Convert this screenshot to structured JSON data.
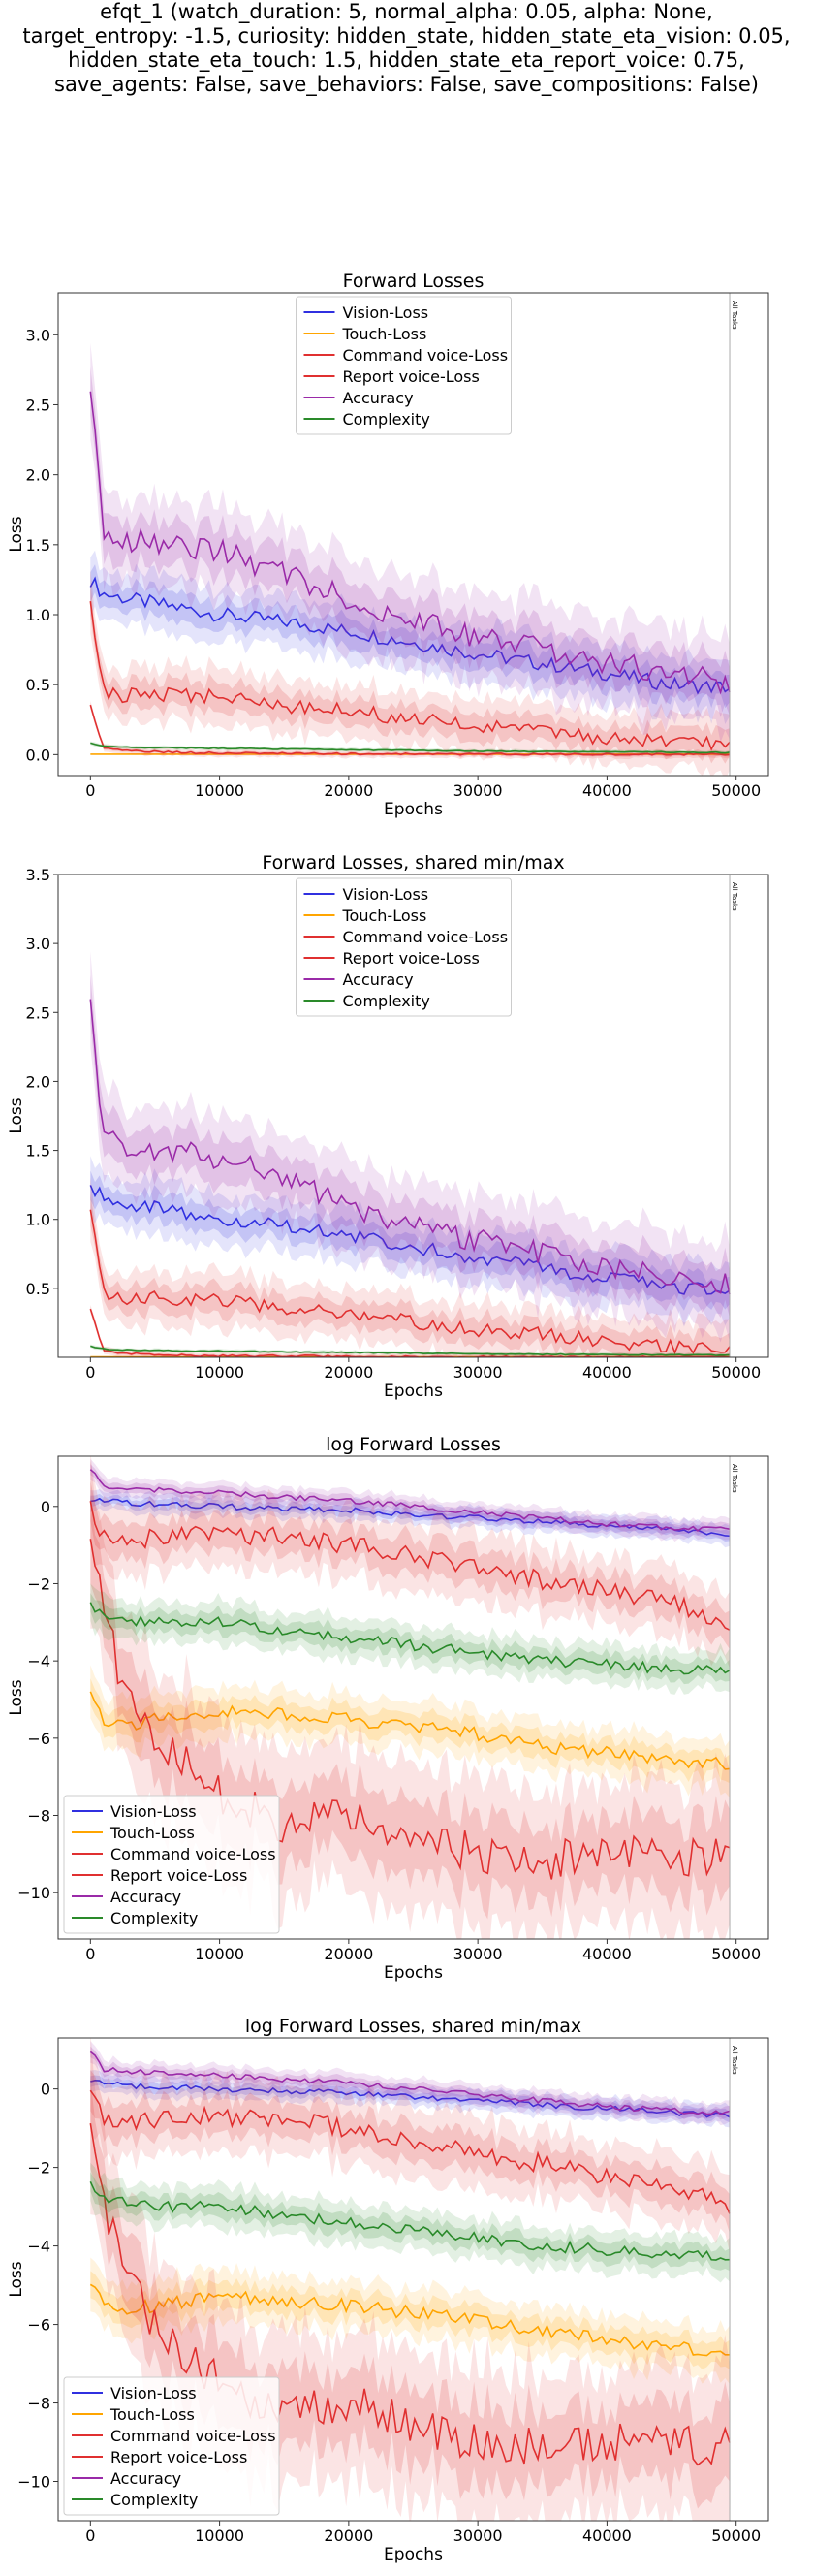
{
  "suptitle": {
    "lines": [
      "efqt_1 (watch_duration: 5, normal_alpha: 0.05, alpha: None,",
      "target_entropy: -1.5, curiosity: hidden_state, hidden_state_eta_vision: 0.05,",
      "hidden_state_eta_touch: 1.5, hidden_state_eta_report_voice: 0.75,",
      "save_agents: False, save_behaviors: False, save_compositions: False)"
    ]
  },
  "colors": {
    "Vision-Loss": "#3030e0",
    "Touch-Loss": "#ffa500",
    "Command voice-Loss": "#e03030",
    "Report voice-Loss": "#e03030",
    "Accuracy": "#9a2aa8",
    "Complexity": "#2a8a2a"
  },
  "chart_data": [
    {
      "type": "line",
      "title": "Forward Losses",
      "xlabel": "Epochs",
      "ylabel": "Loss",
      "xlim": [
        -2500,
        52500
      ],
      "ylim": [
        -0.15,
        3.3
      ],
      "xticks": [
        0,
        10000,
        20000,
        30000,
        40000,
        50000
      ],
      "yticks": [
        0.0,
        0.5,
        1.0,
        1.5,
        2.0,
        2.5,
        3.0
      ],
      "ytick_labels": [
        "0.0",
        "0.5",
        "1.0",
        "1.5",
        "2.0",
        "2.5",
        "3.0"
      ],
      "vline": {
        "x": 49500,
        "label": "All Tasks"
      },
      "legend_position": "top-center",
      "series": [
        {
          "name": "Vision-Loss",
          "x": [
            0,
            1000,
            2500,
            5000,
            10000,
            15000,
            20000,
            25000,
            30000,
            35000,
            40000,
            45000,
            49500
          ],
          "y": [
            1.25,
            1.15,
            1.12,
            1.08,
            1.0,
            0.95,
            0.88,
            0.8,
            0.72,
            0.65,
            0.58,
            0.5,
            0.48
          ],
          "band": 0.15
        },
        {
          "name": "Touch-Loss",
          "x": [
            0,
            49500
          ],
          "y": [
            0.003,
            0.003
          ],
          "band": 0.0
        },
        {
          "name": "Command voice-Loss",
          "x": [
            0,
            1000,
            2500,
            5000,
            10000,
            15000,
            20000,
            25000,
            30000,
            35000,
            40000,
            45000,
            49500
          ],
          "y": [
            1.05,
            0.45,
            0.42,
            0.43,
            0.42,
            0.35,
            0.32,
            0.25,
            0.2,
            0.17,
            0.12,
            0.08,
            0.07
          ],
          "band": 0.15
        },
        {
          "name": "Report voice-Loss",
          "x": [
            0,
            1000,
            2500,
            5000,
            10000,
            15000,
            20000,
            25000,
            30000,
            35000,
            40000,
            45000,
            49500
          ],
          "y": [
            0.35,
            0.05,
            0.03,
            0.02,
            0.01,
            0.01,
            0.005,
            0.005,
            0.003,
            0.003,
            0.003,
            0.003,
            0.003
          ],
          "band": 0.02
        },
        {
          "name": "Accuracy",
          "x": [
            0,
            1000,
            2500,
            5000,
            10000,
            15000,
            20000,
            25000,
            30000,
            35000,
            40000,
            45000,
            49500
          ],
          "y": [
            2.65,
            1.6,
            1.55,
            1.5,
            1.45,
            1.3,
            1.1,
            0.95,
            0.85,
            0.75,
            0.65,
            0.6,
            0.52
          ],
          "band": 0.25
        },
        {
          "name": "Complexity",
          "x": [
            0,
            1000,
            2500,
            5000,
            10000,
            15000,
            20000,
            25000,
            30000,
            35000,
            40000,
            45000,
            49500
          ],
          "y": [
            0.08,
            0.06,
            0.055,
            0.05,
            0.045,
            0.04,
            0.035,
            0.03,
            0.025,
            0.022,
            0.02,
            0.018,
            0.015
          ],
          "band": 0.01
        }
      ]
    },
    {
      "type": "line",
      "title": "Forward Losses, shared min/max",
      "xlabel": "Epochs",
      "ylabel": "Loss",
      "xlim": [
        -2500,
        52500
      ],
      "ylim": [
        0.0,
        3.5
      ],
      "xticks": [
        0,
        10000,
        20000,
        30000,
        40000,
        50000
      ],
      "yticks": [
        0.5,
        1.0,
        1.5,
        2.0,
        2.5,
        3.0,
        3.5
      ],
      "ytick_labels": [
        "0.5",
        "1.0",
        "1.5",
        "2.0",
        "2.5",
        "3.0",
        "3.5"
      ],
      "vline": {
        "x": 49500,
        "label": "All Tasks"
      },
      "legend_position": "top-center",
      "series": [
        {
          "name": "Vision-Loss",
          "x": [
            0,
            1000,
            2500,
            5000,
            10000,
            15000,
            20000,
            25000,
            30000,
            35000,
            40000,
            45000,
            49500
          ],
          "y": [
            1.25,
            1.15,
            1.12,
            1.08,
            1.0,
            0.95,
            0.88,
            0.8,
            0.72,
            0.65,
            0.58,
            0.5,
            0.48
          ],
          "band": 0.15
        },
        {
          "name": "Touch-Loss",
          "x": [
            0,
            49500
          ],
          "y": [
            0.003,
            0.003
          ],
          "band": 0.0
        },
        {
          "name": "Command voice-Loss",
          "x": [
            0,
            1000,
            2500,
            5000,
            10000,
            15000,
            20000,
            25000,
            30000,
            35000,
            40000,
            45000,
            49500
          ],
          "y": [
            1.05,
            0.45,
            0.42,
            0.43,
            0.42,
            0.35,
            0.32,
            0.25,
            0.2,
            0.17,
            0.12,
            0.08,
            0.07
          ],
          "band": 0.15
        },
        {
          "name": "Report voice-Loss",
          "x": [
            0,
            1000,
            2500,
            5000,
            10000,
            15000,
            20000,
            25000,
            30000,
            35000,
            40000,
            45000,
            49500
          ],
          "y": [
            0.35,
            0.05,
            0.03,
            0.02,
            0.01,
            0.01,
            0.005,
            0.005,
            0.003,
            0.003,
            0.003,
            0.003,
            0.003
          ],
          "band": 0.02
        },
        {
          "name": "Accuracy",
          "x": [
            0,
            1000,
            2500,
            5000,
            10000,
            15000,
            20000,
            25000,
            30000,
            35000,
            40000,
            45000,
            49500
          ],
          "y": [
            2.65,
            1.6,
            1.55,
            1.5,
            1.45,
            1.3,
            1.1,
            0.95,
            0.85,
            0.75,
            0.65,
            0.6,
            0.52
          ],
          "band": 0.25
        },
        {
          "name": "Complexity",
          "x": [
            0,
            1000,
            2500,
            5000,
            10000,
            15000,
            20000,
            25000,
            30000,
            35000,
            40000,
            45000,
            49500
          ],
          "y": [
            0.08,
            0.06,
            0.055,
            0.05,
            0.045,
            0.04,
            0.035,
            0.03,
            0.025,
            0.022,
            0.02,
            0.018,
            0.015
          ],
          "band": 0.01
        }
      ]
    },
    {
      "type": "line",
      "title": "log Forward Losses",
      "xlabel": "",
      "xlabel_shown": "Epochs",
      "ylabel": "Loss",
      "xlim": [
        -2500,
        52500
      ],
      "ylim": [
        -11.2,
        1.3
      ],
      "xticks": [
        0,
        10000,
        20000,
        30000,
        40000,
        50000
      ],
      "yticks": [
        0,
        -2,
        -4,
        -6,
        -8,
        -10
      ],
      "ytick_labels": [
        "0",
        "−2",
        "−4",
        "−6",
        "−8",
        "−10"
      ],
      "vline": {
        "x": 49500,
        "label": "All Tasks"
      },
      "legend_position": "lower-left",
      "series": [
        {
          "name": "Vision-Loss",
          "x": [
            0,
            2500,
            5000,
            10000,
            15000,
            20000,
            25000,
            30000,
            35000,
            40000,
            45000,
            49500
          ],
          "y": [
            0.2,
            0.1,
            0.05,
            0.0,
            -0.05,
            -0.1,
            -0.2,
            -0.3,
            -0.4,
            -0.5,
            -0.6,
            -0.7
          ],
          "band": 0.2
        },
        {
          "name": "Touch-Loss",
          "x": [
            0,
            1000,
            2500,
            5000,
            10000,
            15000,
            20000,
            25000,
            30000,
            35000,
            40000,
            45000,
            49500
          ],
          "y": [
            -4.9,
            -5.5,
            -5.7,
            -5.5,
            -5.3,
            -5.4,
            -5.5,
            -5.7,
            -5.9,
            -6.2,
            -6.4,
            -6.6,
            -6.7
          ],
          "band": 0.5
        },
        {
          "name": "Command voice-Loss",
          "x": [
            0,
            1000,
            2500,
            5000,
            10000,
            15000,
            20000,
            25000,
            30000,
            35000,
            40000,
            45000,
            49500
          ],
          "y": [
            -1.0,
            -2.8,
            -4.5,
            -6.0,
            -7.5,
            -8.2,
            -8.0,
            -8.5,
            -9.0,
            -9.2,
            -9.0,
            -9.1,
            -9.1
          ],
          "band": 1.5
        },
        {
          "name": "Report voice-Loss",
          "x": [
            0,
            1000,
            2500,
            5000,
            10000,
            15000,
            20000,
            25000,
            30000,
            35000,
            40000,
            45000,
            49500
          ],
          "y": [
            0.0,
            -0.8,
            -0.9,
            -0.8,
            -0.7,
            -0.8,
            -1.0,
            -1.3,
            -1.6,
            -1.9,
            -2.2,
            -2.5,
            -3.0
          ],
          "band": 0.7
        },
        {
          "name": "Accuracy",
          "x": [
            0,
            1000,
            2500,
            5000,
            10000,
            15000,
            20000,
            25000,
            30000,
            35000,
            40000,
            45000,
            49500
          ],
          "y": [
            0.95,
            0.5,
            0.45,
            0.42,
            0.35,
            0.25,
            0.15,
            0.0,
            -0.15,
            -0.3,
            -0.45,
            -0.55,
            -0.6
          ],
          "band": 0.2
        },
        {
          "name": "Complexity",
          "x": [
            0,
            1000,
            2500,
            5000,
            10000,
            15000,
            20000,
            25000,
            30000,
            35000,
            40000,
            45000,
            49500
          ],
          "y": [
            -2.5,
            -2.8,
            -2.9,
            -3.0,
            -3.0,
            -3.2,
            -3.4,
            -3.6,
            -3.8,
            -4.0,
            -4.1,
            -4.2,
            -4.3
          ],
          "band": 0.4
        }
      ]
    },
    {
      "type": "line",
      "title": "log Forward Losses, shared min/max",
      "xlabel": "Epochs",
      "ylabel": "Loss",
      "xlim": [
        -2500,
        52500
      ],
      "ylim": [
        -11.0,
        1.3
      ],
      "xticks": [
        0,
        10000,
        20000,
        30000,
        40000,
        50000
      ],
      "yticks": [
        0,
        -2,
        -4,
        -6,
        -8,
        -10
      ],
      "ytick_labels": [
        "0",
        "−2",
        "−4",
        "−6",
        "−8",
        "−10"
      ],
      "vline": {
        "x": 49500,
        "label": "All Tasks"
      },
      "legend_position": "lower-left",
      "series": [
        {
          "name": "Vision-Loss",
          "x": [
            0,
            2500,
            5000,
            10000,
            15000,
            20000,
            25000,
            30000,
            35000,
            40000,
            45000,
            49500
          ],
          "y": [
            0.2,
            0.1,
            0.05,
            0.0,
            -0.05,
            -0.1,
            -0.2,
            -0.3,
            -0.4,
            -0.5,
            -0.6,
            -0.7
          ],
          "band": 0.2
        },
        {
          "name": "Touch-Loss",
          "x": [
            0,
            1000,
            2500,
            5000,
            10000,
            15000,
            20000,
            25000,
            30000,
            35000,
            40000,
            45000,
            49500
          ],
          "y": [
            -4.9,
            -5.5,
            -5.7,
            -5.5,
            -5.3,
            -5.4,
            -5.5,
            -5.7,
            -5.9,
            -6.2,
            -6.4,
            -6.6,
            -6.7
          ],
          "band": 0.5
        },
        {
          "name": "Command voice-Loss",
          "x": [
            0,
            1000,
            2500,
            5000,
            10000,
            15000,
            20000,
            25000,
            30000,
            35000,
            40000,
            45000,
            49500
          ],
          "y": [
            -1.0,
            -2.8,
            -4.5,
            -6.0,
            -7.5,
            -8.2,
            -8.0,
            -8.5,
            -9.0,
            -9.2,
            -9.0,
            -9.1,
            -9.1
          ],
          "band": 1.5
        },
        {
          "name": "Report voice-Loss",
          "x": [
            0,
            1000,
            2500,
            5000,
            10000,
            15000,
            20000,
            25000,
            30000,
            35000,
            40000,
            45000,
            49500
          ],
          "y": [
            0.0,
            -0.8,
            -0.9,
            -0.8,
            -0.7,
            -0.8,
            -1.0,
            -1.3,
            -1.6,
            -1.9,
            -2.2,
            -2.5,
            -3.0
          ],
          "band": 0.7
        },
        {
          "name": "Accuracy",
          "x": [
            0,
            1000,
            2500,
            5000,
            10000,
            15000,
            20000,
            25000,
            30000,
            35000,
            40000,
            45000,
            49500
          ],
          "y": [
            0.95,
            0.5,
            0.45,
            0.42,
            0.35,
            0.25,
            0.15,
            0.0,
            -0.15,
            -0.3,
            -0.45,
            -0.55,
            -0.6
          ],
          "band": 0.2
        },
        {
          "name": "Complexity",
          "x": [
            0,
            1000,
            2500,
            5000,
            10000,
            15000,
            20000,
            25000,
            30000,
            35000,
            40000,
            45000,
            49500
          ],
          "y": [
            -2.5,
            -2.8,
            -2.9,
            -3.0,
            -3.0,
            -3.2,
            -3.4,
            -3.6,
            -3.8,
            -4.0,
            -4.1,
            -4.2,
            -4.3
          ],
          "band": 0.4
        }
      ]
    }
  ]
}
